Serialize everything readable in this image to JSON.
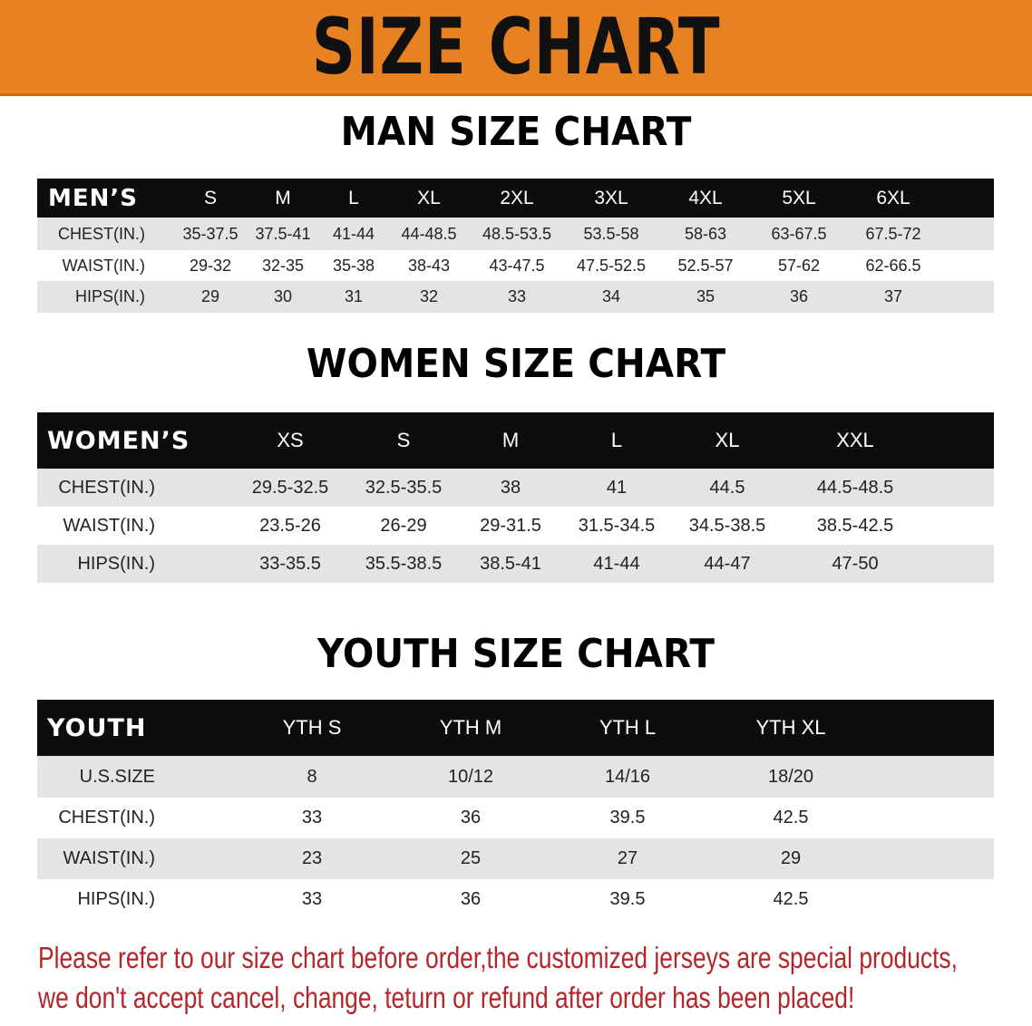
{
  "banner": {
    "title": "SIZE CHART",
    "color": "#e8811f"
  },
  "men": {
    "title": "MAN SIZE CHART",
    "header": [
      "MEN’S",
      "S",
      "M",
      "L",
      "XL",
      "2XL",
      "3XL",
      "4XL",
      "5XL",
      "6XL"
    ],
    "rows": [
      [
        "CHEST(IN.)",
        "35-37.5",
        "37.5-41",
        "41-44",
        "44-48.5",
        "48.5-53.5",
        "53.5-58",
        "58-63",
        "63-67.5",
        "67.5-72"
      ],
      [
        "WAIST(IN.)",
        "29-32",
        "32-35",
        "35-38",
        "38-43",
        "43-47.5",
        "47.5-52.5",
        "52.5-57",
        "57-62",
        "62-66.5"
      ],
      [
        "HIPS(IN.)",
        "29",
        "30",
        "31",
        "32",
        "33",
        "34",
        "35",
        "36",
        "37"
      ]
    ]
  },
  "women": {
    "title": "WOMEN SIZE CHART",
    "header": [
      "WOMEN’S",
      "XS",
      "S",
      "M",
      "L",
      "XL",
      "XXL"
    ],
    "rows": [
      [
        "CHEST(IN.)",
        "29.5-32.5",
        "32.5-35.5",
        "38",
        "41",
        "44.5",
        "44.5-48.5"
      ],
      [
        "WAIST(IN.)",
        "23.5-26",
        "26-29",
        "29-31.5",
        "31.5-34.5",
        "34.5-38.5",
        "38.5-42.5"
      ],
      [
        "HIPS(IN.)",
        "33-35.5",
        "35.5-38.5",
        "38.5-41",
        "41-44",
        "44-47",
        "47-50"
      ]
    ]
  },
  "youth": {
    "title": "YOUTH SIZE CHART",
    "header": [
      "YOUTH",
      "YTH S",
      "YTH M",
      "YTH L",
      "YTH XL"
    ],
    "rows": [
      [
        "U.S.SIZE",
        "8",
        "10/12",
        "14/16",
        "18/20"
      ],
      [
        "CHEST(IN.)",
        "33",
        "36",
        "39.5",
        "42.5"
      ],
      [
        "WAIST(IN.)",
        "23",
        "25",
        "27",
        "29"
      ],
      [
        "HIPS(IN.)",
        "33",
        "36",
        "39.5",
        "42.5"
      ]
    ]
  },
  "footer": {
    "line1": "Please refer to our size chart before order,the customized jerseys are special products,",
    "line2": "we don't accept cancel, change, teturn or refund after order has been placed!",
    "color": "#b3262a"
  }
}
